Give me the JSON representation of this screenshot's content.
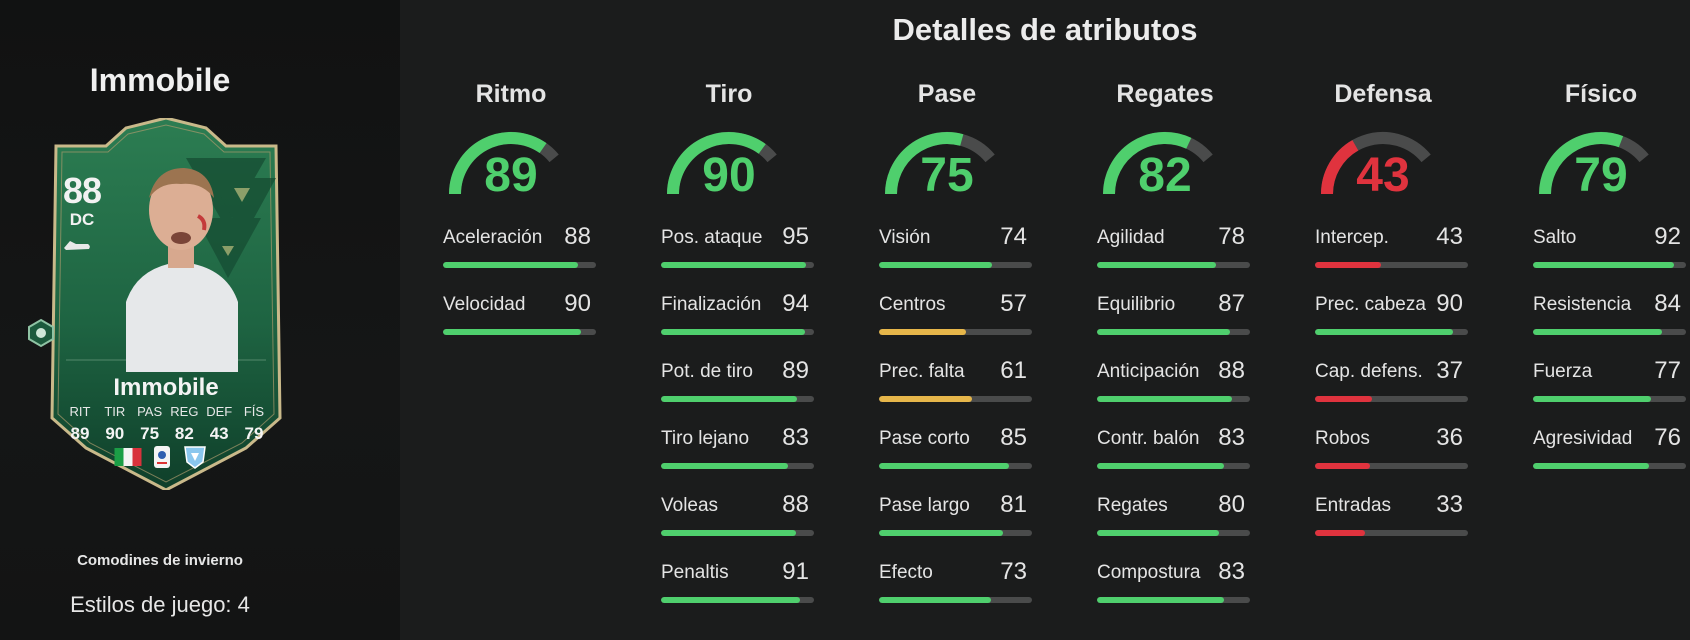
{
  "player": {
    "name": "Immobile",
    "rating": "88",
    "position": "DC",
    "card_name": "Immobile",
    "face_stats": [
      {
        "label": "RIT",
        "value": "89"
      },
      {
        "label": "TIR",
        "value": "90"
      },
      {
        "label": "PAS",
        "value": "75"
      },
      {
        "label": "REG",
        "value": "82"
      },
      {
        "label": "DEF",
        "value": "43"
      },
      {
        "label": "FÍS",
        "value": "79"
      }
    ],
    "promo": "Comodines de invierno",
    "playstyles": "Estilos de juego: 4"
  },
  "section_title": "Detalles de atributos",
  "colors": {
    "high": "#4fcf6d",
    "mid": "#e6b64a",
    "low": "#e0333e",
    "track": "#4a4b4b",
    "card_green": "#1f6a45"
  },
  "categories": [
    {
      "name": "Ritmo",
      "value": 89,
      "color": "#4fcf6d",
      "attrs": [
        {
          "name": "Aceleración",
          "value": 88
        },
        {
          "name": "Velocidad",
          "value": 90
        }
      ]
    },
    {
      "name": "Tiro",
      "value": 90,
      "color": "#4fcf6d",
      "attrs": [
        {
          "name": "Pos. ataque",
          "value": 95
        },
        {
          "name": "Finalización",
          "value": 94
        },
        {
          "name": "Pot. de tiro",
          "value": 89
        },
        {
          "name": "Tiro lejano",
          "value": 83
        },
        {
          "name": "Voleas",
          "value": 88
        },
        {
          "name": "Penaltis",
          "value": 91
        }
      ]
    },
    {
      "name": "Pase",
      "value": 75,
      "color": "#4fcf6d",
      "attrs": [
        {
          "name": "Visión",
          "value": 74
        },
        {
          "name": "Centros",
          "value": 57
        },
        {
          "name": "Prec. falta",
          "value": 61
        },
        {
          "name": "Pase corto",
          "value": 85
        },
        {
          "name": "Pase largo",
          "value": 81
        },
        {
          "name": "Efecto",
          "value": 73
        }
      ]
    },
    {
      "name": "Regates",
      "value": 82,
      "color": "#4fcf6d",
      "attrs": [
        {
          "name": "Agilidad",
          "value": 78
        },
        {
          "name": "Equilibrio",
          "value": 87
        },
        {
          "name": "Anticipación",
          "value": 88
        },
        {
          "name": "Contr. balón",
          "value": 83
        },
        {
          "name": "Regates",
          "value": 80
        },
        {
          "name": "Compostura",
          "value": 83
        }
      ]
    },
    {
      "name": "Defensa",
      "value": 43,
      "color": "#e0333e",
      "attrs": [
        {
          "name": "Intercep.",
          "value": 43
        },
        {
          "name": "Prec. cabeza",
          "value": 90
        },
        {
          "name": "Cap. defens.",
          "value": 37
        },
        {
          "name": "Robos",
          "value": 36
        },
        {
          "name": "Entradas",
          "value": 33
        }
      ]
    },
    {
      "name": "Físico",
      "value": 79,
      "color": "#4fcf6d",
      "attrs": [
        {
          "name": "Salto",
          "value": 92
        },
        {
          "name": "Resistencia",
          "value": 84
        },
        {
          "name": "Fuerza",
          "value": 77
        },
        {
          "name": "Agresividad",
          "value": 76
        }
      ]
    }
  ]
}
